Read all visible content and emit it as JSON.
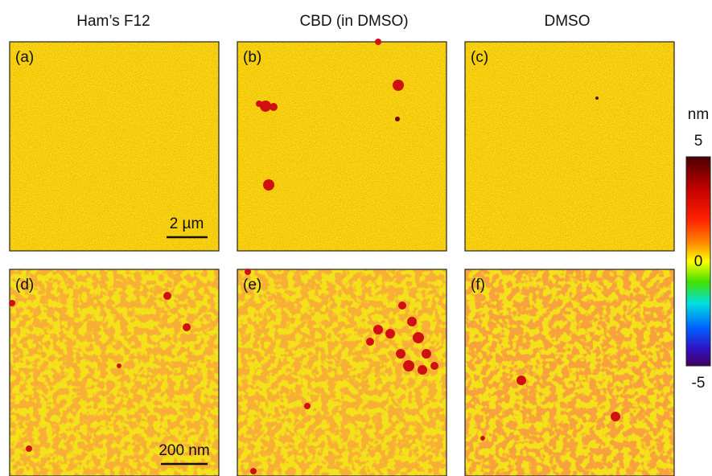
{
  "columns": [
    "Ham’s F12",
    "CBD (in DMSO)",
    "DMSO"
  ],
  "panels": [
    "(a)",
    "(b)",
    "(c)",
    "(d)",
    "(e)",
    "(f)"
  ],
  "scale_bars": [
    "2 µm",
    "200 nm"
  ],
  "colorbar": {
    "unit": "nm",
    "ticks": [
      "5",
      "0",
      "-5"
    ]
  }
}
